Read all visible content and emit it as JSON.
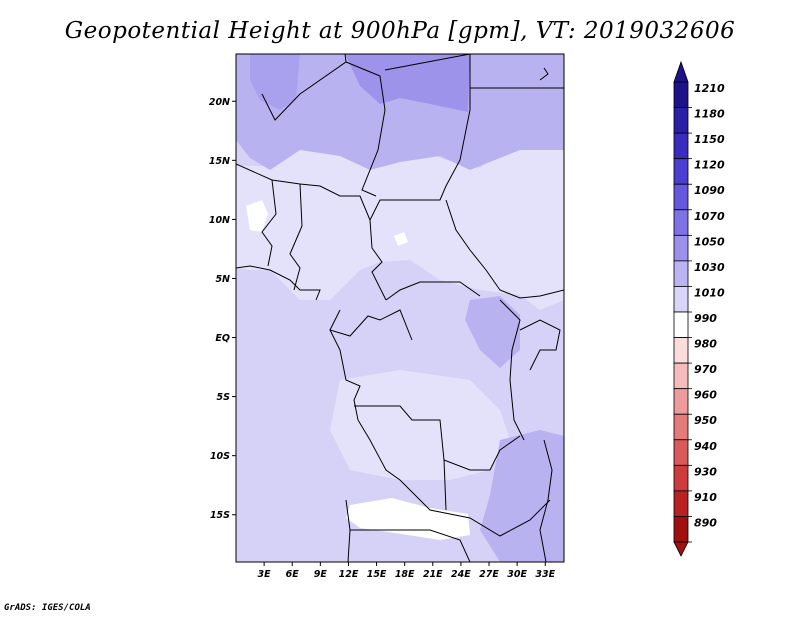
{
  "title": "Geopotential Height at 900hPa [gpm], VT: 2019032606",
  "credit": "GrADS: IGES/COLA",
  "map": {
    "lon_range": [
      0,
      35
    ],
    "lat_range": [
      -19,
      24
    ],
    "lat_ticks": [
      {
        "value": 20,
        "label": "20N"
      },
      {
        "value": 15,
        "label": "15N"
      },
      {
        "value": 10,
        "label": "10N"
      },
      {
        "value": 5,
        "label": "5N"
      },
      {
        "value": 0,
        "label": "EQ"
      },
      {
        "value": -5,
        "label": "5S"
      },
      {
        "value": -10,
        "label": "10S"
      },
      {
        "value": -15,
        "label": "15S"
      }
    ],
    "lon_ticks": [
      {
        "value": 3,
        "label": "3E"
      },
      {
        "value": 6,
        "label": "6E"
      },
      {
        "value": 9,
        "label": "9E"
      },
      {
        "value": 12,
        "label": "12E"
      },
      {
        "value": 15,
        "label": "15E"
      },
      {
        "value": 18,
        "label": "18E"
      },
      {
        "value": 21,
        "label": "21E"
      },
      {
        "value": 24,
        "label": "24E"
      },
      {
        "value": 27,
        "label": "27E"
      },
      {
        "value": 30,
        "label": "30E"
      },
      {
        "value": 33,
        "label": "33E"
      }
    ]
  },
  "colorbar": {
    "labels": [
      "1210",
      "1180",
      "1150",
      "1120",
      "1090",
      "1070",
      "1050",
      "1030",
      "1010",
      "990",
      "980",
      "970",
      "960",
      "950",
      "940",
      "930",
      "910",
      "890"
    ],
    "colors": [
      "#1f118a",
      "#2a1fa6",
      "#3a2cbf",
      "#4b3ed0",
      "#6658dd",
      "#7e72e5",
      "#9b91ec",
      "#bbb4f3",
      "#d9d5f8",
      "#ffffff",
      "#fbdcdc",
      "#f5bcbc",
      "#ee9b9b",
      "#e47a7a",
      "#d95a5a",
      "#cc3c3c",
      "#b92222",
      "#a01010"
    ]
  }
}
